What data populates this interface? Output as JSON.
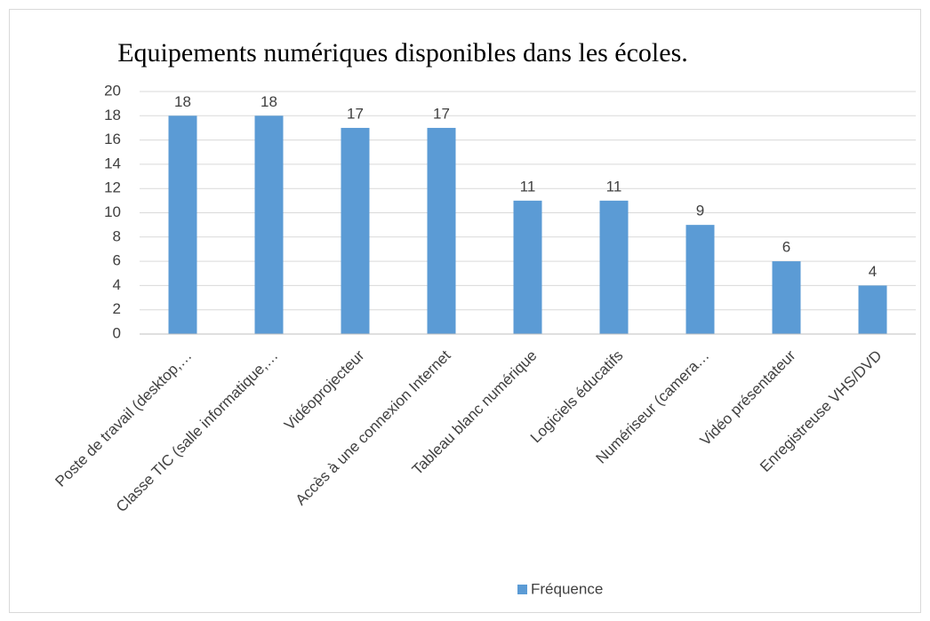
{
  "chart_data": {
    "type": "bar",
    "title": "Equipements numériques disponibles dans les écoles.",
    "categories": [
      "Poste de travail (desktop,…",
      "Classe TIC (salle informatique,…",
      "Vidéoprojecteur",
      "Accès à une connexion Internet",
      "Tableau blanc numérique",
      "Logiciels éducatifs",
      "Numériseur (camera…",
      "Vidéo présentateur",
      "Enregistreuse VHS/DVD"
    ],
    "series": [
      {
        "name": "Fréquence",
        "color": "#5b9bd5",
        "values": [
          18,
          18,
          17,
          17,
          11,
          11,
          9,
          6,
          4
        ]
      }
    ],
    "ylim": [
      0,
      20
    ],
    "yticks": [
      0,
      2,
      4,
      6,
      8,
      10,
      12,
      14,
      16,
      18,
      20
    ],
    "grid": true,
    "legend": "bottom"
  }
}
